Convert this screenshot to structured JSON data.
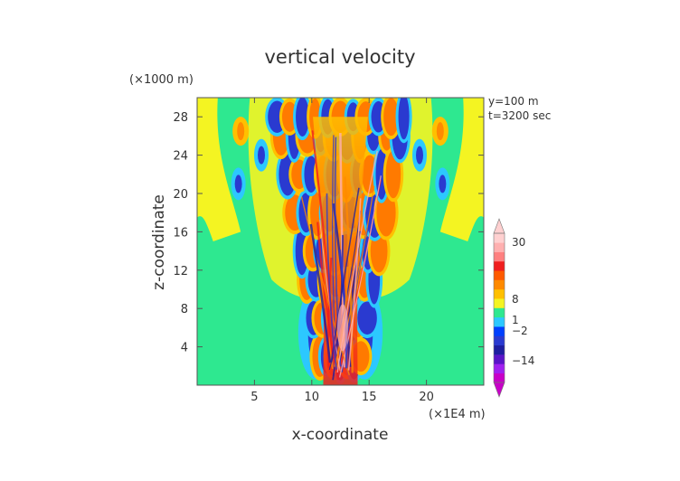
{
  "chart_data": {
    "type": "heatmap",
    "title": "vertical velocity",
    "xlabel": "x-coordinate",
    "ylabel": "z-coordinate",
    "x_unit": "(×1E4 m)",
    "y_unit": "(×1000 m)",
    "annotations": [
      "y=100 m",
      "t=3200 sec"
    ],
    "xlim": [
      0,
      25
    ],
    "ylim": [
      0,
      30
    ],
    "x_ticks": [
      5,
      10,
      15,
      20
    ],
    "y_ticks": [
      4,
      8,
      12,
      16,
      20,
      24,
      28
    ],
    "colorbar": {
      "tick_labels": [
        "30",
        "8",
        "1",
        "−2",
        "−14"
      ],
      "tick_values": [
        30,
        8,
        1,
        -2,
        -14
      ],
      "colors_low_to_high": [
        "#c800c8",
        "#a020f0",
        "#5a14c8",
        "#1e1ea0",
        "#2a3ad0",
        "#0040ff",
        "#2cc8ff",
        "#2ee890",
        "#f4f422",
        "#ffc000",
        "#ff8a00",
        "#ff5a00",
        "#f01e1e",
        "#ff8080",
        "#ffb0b0",
        "#ffd0d0"
      ]
    },
    "field_features": {
      "background": "#2ee890",
      "plume": {
        "x_center": 12.5,
        "width_at_base": 3.0,
        "width_at_top": 8.0,
        "z_top": 28
      },
      "side_bands_positive": {
        "x_left": 1.2,
        "x_right": 23.8
      },
      "cells_rows_z": [
        3,
        7,
        11,
        14,
        18,
        22,
        26,
        28
      ]
    }
  }
}
